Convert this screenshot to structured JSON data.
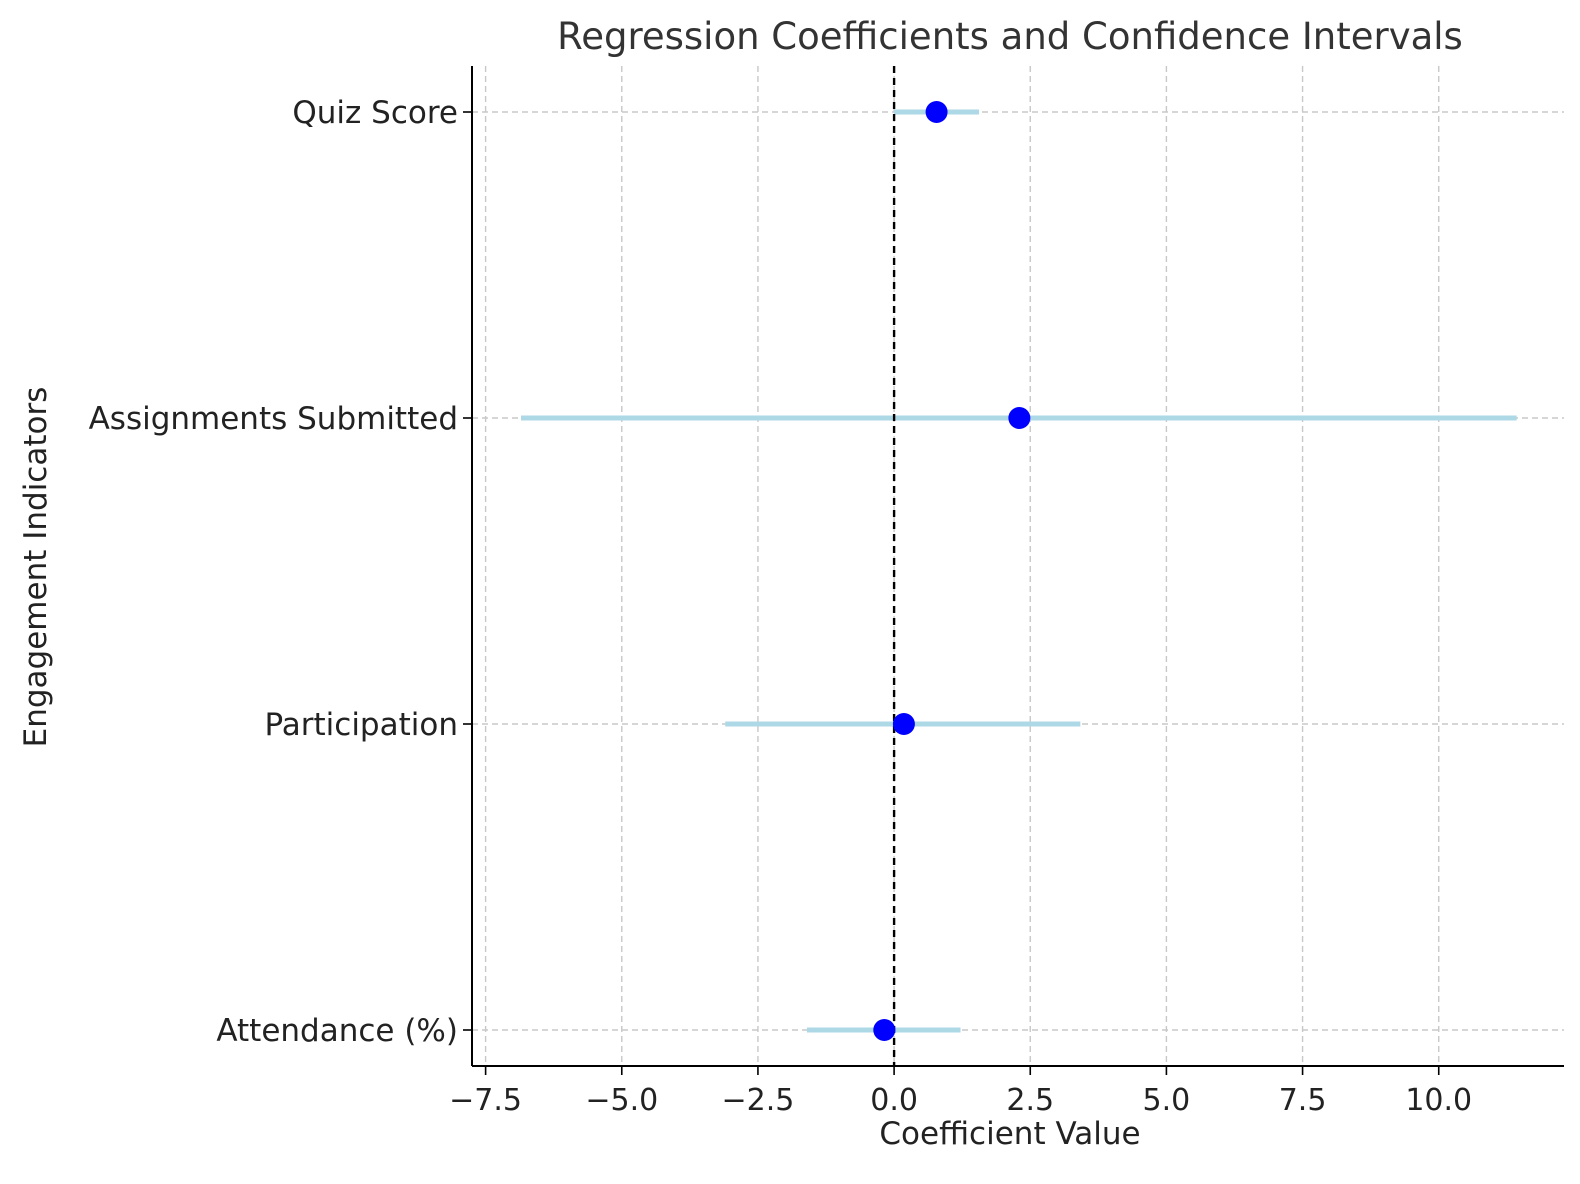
{
  "chart_data": {
    "type": "scatter",
    "subtype": "coefficient-plot",
    "title": "Regression Coefficients and Confidence Intervals",
    "xlabel": "Coefficient Value",
    "ylabel": "Engagement Indicators",
    "categories": [
      "Attendance (%)",
      "Participation",
      "Assignments Submitted",
      "Quiz Score"
    ],
    "series": [
      {
        "values": [
          -0.18,
          0.18,
          2.3,
          0.78
        ],
        "ci_lower": [
          -1.6,
          -3.1,
          -6.85,
          0.0
        ],
        "ci_upper": [
          1.22,
          3.42,
          11.43,
          1.56
        ]
      }
    ],
    "xlim": [
      -7.75,
      12.3
    ],
    "xticks": [
      -7.5,
      -5.0,
      -2.5,
      0.0,
      2.5,
      5.0,
      7.5,
      10.0
    ],
    "xtick_labels": [
      "−7.5",
      "−5.0",
      "−2.5",
      "0.0",
      "2.5",
      "5.0",
      "7.5",
      "10.0"
    ],
    "reference_line": 0,
    "grid": true,
    "colors": {
      "point": "#0000ff",
      "interval": "#add8e6",
      "reference": "#000000",
      "grid": "#c8c8c8",
      "axis": "#000000",
      "text": "#222222"
    }
  }
}
